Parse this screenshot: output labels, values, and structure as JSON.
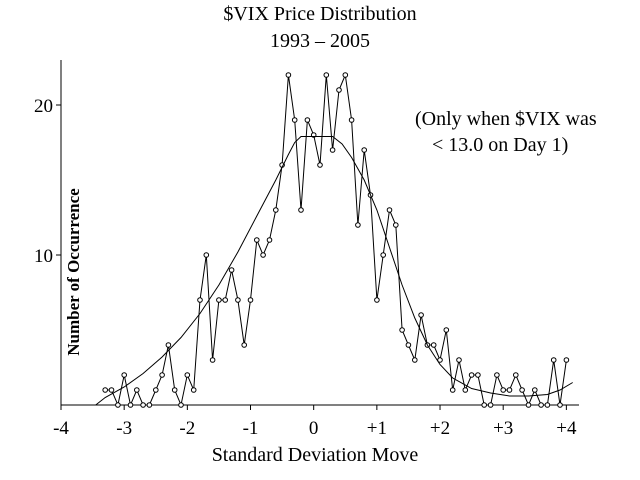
{
  "chart_data": {
    "type": "line",
    "title_lines": [
      "$VIX Price Distribution",
      "1993  –  2005"
    ],
    "xlabel": "Standard Deviation Move",
    "ylabel": "Number of Occurrence",
    "annotation_lines": [
      "(Only when $VIX was",
      "< 13.0 on Day 1)"
    ],
    "xlim": [
      -4,
      4.2
    ],
    "ylim": [
      0,
      23
    ],
    "x_ticks": [
      {
        "value": -4,
        "label": "-4"
      },
      {
        "value": -3,
        "label": "-3"
      },
      {
        "value": -2,
        "label": "-2"
      },
      {
        "value": -1,
        "label": "-1"
      },
      {
        "value": 0,
        "label": "0"
      },
      {
        "value": 1,
        "label": "+1"
      },
      {
        "value": 2,
        "label": "+2"
      },
      {
        "value": 3,
        "label": "+3"
      },
      {
        "value": 4,
        "label": "+4"
      }
    ],
    "y_ticks": [
      {
        "value": 10,
        "label": "10"
      },
      {
        "value": 20,
        "label": "20"
      }
    ],
    "grid": false,
    "series": [
      {
        "kind": "observed",
        "marker": "open-circle",
        "points": [
          [
            -3.3,
            1
          ],
          [
            -3.2,
            1
          ],
          [
            -3.1,
            0
          ],
          [
            -3.0,
            2
          ],
          [
            -2.9,
            0
          ],
          [
            -2.8,
            1
          ],
          [
            -2.7,
            0
          ],
          [
            -2.6,
            0
          ],
          [
            -2.5,
            1
          ],
          [
            -2.4,
            2
          ],
          [
            -2.3,
            4
          ],
          [
            -2.2,
            1
          ],
          [
            -2.1,
            0
          ],
          [
            -2.0,
            2
          ],
          [
            -1.9,
            1
          ],
          [
            -1.8,
            7
          ],
          [
            -1.7,
            10
          ],
          [
            -1.6,
            3
          ],
          [
            -1.5,
            7
          ],
          [
            -1.4,
            7
          ],
          [
            -1.3,
            9
          ],
          [
            -1.2,
            7
          ],
          [
            -1.1,
            4
          ],
          [
            -1.0,
            7
          ],
          [
            -0.9,
            11
          ],
          [
            -0.8,
            10
          ],
          [
            -0.7,
            11
          ],
          [
            -0.6,
            13
          ],
          [
            -0.5,
            16
          ],
          [
            -0.4,
            22
          ],
          [
            -0.3,
            19
          ],
          [
            -0.2,
            13
          ],
          [
            -0.1,
            19
          ],
          [
            0.0,
            18
          ],
          [
            0.1,
            16
          ],
          [
            0.2,
            22
          ],
          [
            0.3,
            17
          ],
          [
            0.4,
            21
          ],
          [
            0.5,
            22
          ],
          [
            0.6,
            19
          ],
          [
            0.7,
            12
          ],
          [
            0.8,
            17
          ],
          [
            0.9,
            14
          ],
          [
            1.0,
            7
          ],
          [
            1.1,
            10
          ],
          [
            1.2,
            13
          ],
          [
            1.3,
            12
          ],
          [
            1.4,
            5
          ],
          [
            1.5,
            4
          ],
          [
            1.6,
            3
          ],
          [
            1.7,
            6
          ],
          [
            1.8,
            4
          ],
          [
            1.9,
            4
          ],
          [
            2.0,
            3
          ],
          [
            2.1,
            5
          ],
          [
            2.2,
            1
          ],
          [
            2.3,
            3
          ],
          [
            2.4,
            1
          ],
          [
            2.5,
            2
          ],
          [
            2.6,
            2
          ],
          [
            2.7,
            0
          ],
          [
            2.8,
            0
          ],
          [
            2.9,
            2
          ],
          [
            3.0,
            1
          ],
          [
            3.1,
            1
          ],
          [
            3.2,
            2
          ],
          [
            3.3,
            1
          ],
          [
            3.4,
            0
          ],
          [
            3.5,
            1
          ],
          [
            3.6,
            0
          ],
          [
            3.7,
            0
          ],
          [
            3.8,
            3
          ],
          [
            3.9,
            0
          ],
          [
            4.0,
            3
          ]
        ]
      },
      {
        "kind": "fitted-curve",
        "marker": "none",
        "points": [
          [
            -3.45,
            0
          ],
          [
            -3.3,
            0.5
          ],
          [
            -3.0,
            1.2
          ],
          [
            -2.7,
            2.1
          ],
          [
            -2.4,
            3.2
          ],
          [
            -2.1,
            4.5
          ],
          [
            -1.8,
            6.1
          ],
          [
            -1.5,
            8.0
          ],
          [
            -1.2,
            10.2
          ],
          [
            -0.9,
            12.6
          ],
          [
            -0.6,
            15.0
          ],
          [
            -0.4,
            16.7
          ],
          [
            -0.3,
            17.5
          ],
          [
            -0.2,
            17.9
          ],
          [
            0.0,
            17.9
          ],
          [
            0.3,
            17.9
          ],
          [
            0.45,
            17.4
          ],
          [
            0.6,
            16.5
          ],
          [
            0.8,
            15.0
          ],
          [
            1.0,
            13.0
          ],
          [
            1.2,
            10.5
          ],
          [
            1.4,
            8.0
          ],
          [
            1.6,
            5.8
          ],
          [
            1.8,
            4.0
          ],
          [
            2.0,
            2.7
          ],
          [
            2.2,
            1.8
          ],
          [
            2.5,
            1.1
          ],
          [
            2.8,
            0.8
          ],
          [
            3.1,
            0.6
          ],
          [
            3.4,
            0.6
          ],
          [
            3.7,
            0.7
          ],
          [
            3.9,
            1.0
          ],
          [
            4.1,
            1.5
          ]
        ]
      }
    ]
  }
}
